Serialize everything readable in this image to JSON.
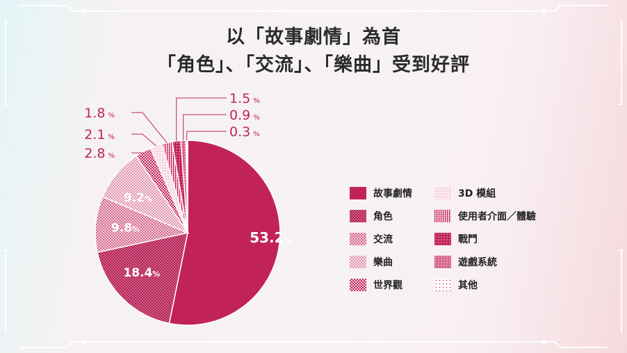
{
  "title": {
    "line1": "以「故事劇情」為首",
    "line2": "「角色」、「交流」、「樂曲」受到好評"
  },
  "colors": {
    "accent": "#c2225a",
    "frame": "#ffffff"
  },
  "chart_data": {
    "type": "pie",
    "title": "以「故事劇情」為首「角色」、「交流」、「樂曲」受到好評",
    "unit": "%",
    "slices": [
      {
        "name": "故事劇情",
        "value": 53.2,
        "label": "53.2",
        "pattern": "solid"
      },
      {
        "name": "角色",
        "value": 18.4,
        "label": "18.4",
        "pattern": "dense-dots"
      },
      {
        "name": "交流",
        "value": 9.8,
        "label": "9.8",
        "pattern": "light-dots"
      },
      {
        "name": "樂曲",
        "value": 9.2,
        "label": "9.2",
        "pattern": "lighter-dots"
      },
      {
        "name": "世界觀",
        "value": 2.8,
        "label": "2.8",
        "pattern": "checker"
      },
      {
        "name": "3D模組",
        "value": 2.1,
        "label": "2.1",
        "pattern": "pale"
      },
      {
        "name": "使用者介面／體驗",
        "value": 1.8,
        "label": "1.8",
        "pattern": "vlines"
      },
      {
        "name": "戰鬥",
        "value": 1.5,
        "label": "1.5",
        "pattern": "grid"
      },
      {
        "name": "遊戲系統",
        "value": 0.9,
        "label": "0.9",
        "pattern": "medium"
      },
      {
        "name": "其他",
        "value": 0.3,
        "label": "0.3",
        "pattern": "sparse-dots"
      }
    ],
    "legend": {
      "placement": "right",
      "columns": [
        [
          "故事劇情",
          "角色",
          "交流",
          "樂曲",
          "世界觀"
        ],
        [
          "3D 模組",
          "使用者介面／體驗",
          "戰鬥",
          "遊戲系統",
          "其他"
        ]
      ]
    }
  }
}
